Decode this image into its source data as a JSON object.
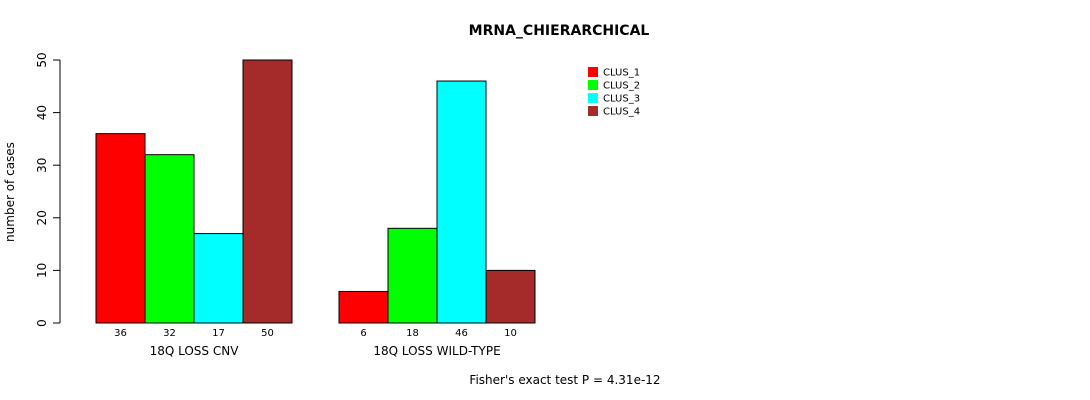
{
  "chart_data": {
    "type": "bar",
    "title": "MRNA_CHIERARCHICAL",
    "ylabel": "number of cases",
    "ylim": [
      0,
      50
    ],
    "yticks": [
      "0",
      "10",
      "20",
      "30",
      "40",
      "50"
    ],
    "groups": [
      {
        "label": "18Q LOSS CNV",
        "values": [
          36,
          32,
          17,
          50
        ],
        "value_labels": [
          "36",
          "32",
          "17",
          "50"
        ]
      },
      {
        "label": "18Q LOSS WILD-TYPE",
        "values": [
          6,
          18,
          46,
          10
        ],
        "value_labels": [
          "6",
          "18",
          "46",
          "10"
        ]
      }
    ],
    "series": [
      {
        "name": "CLUS_1",
        "color": "#ff0000"
      },
      {
        "name": "CLUS_2",
        "color": "#00ff00"
      },
      {
        "name": "CLUS_3",
        "color": "#00ffff"
      },
      {
        "name": "CLUS_4",
        "color": "#a52a2a"
      }
    ],
    "legend_position": "top-right",
    "grid": false,
    "footnote": "Fisher's exact test P = 4.31e-12"
  }
}
